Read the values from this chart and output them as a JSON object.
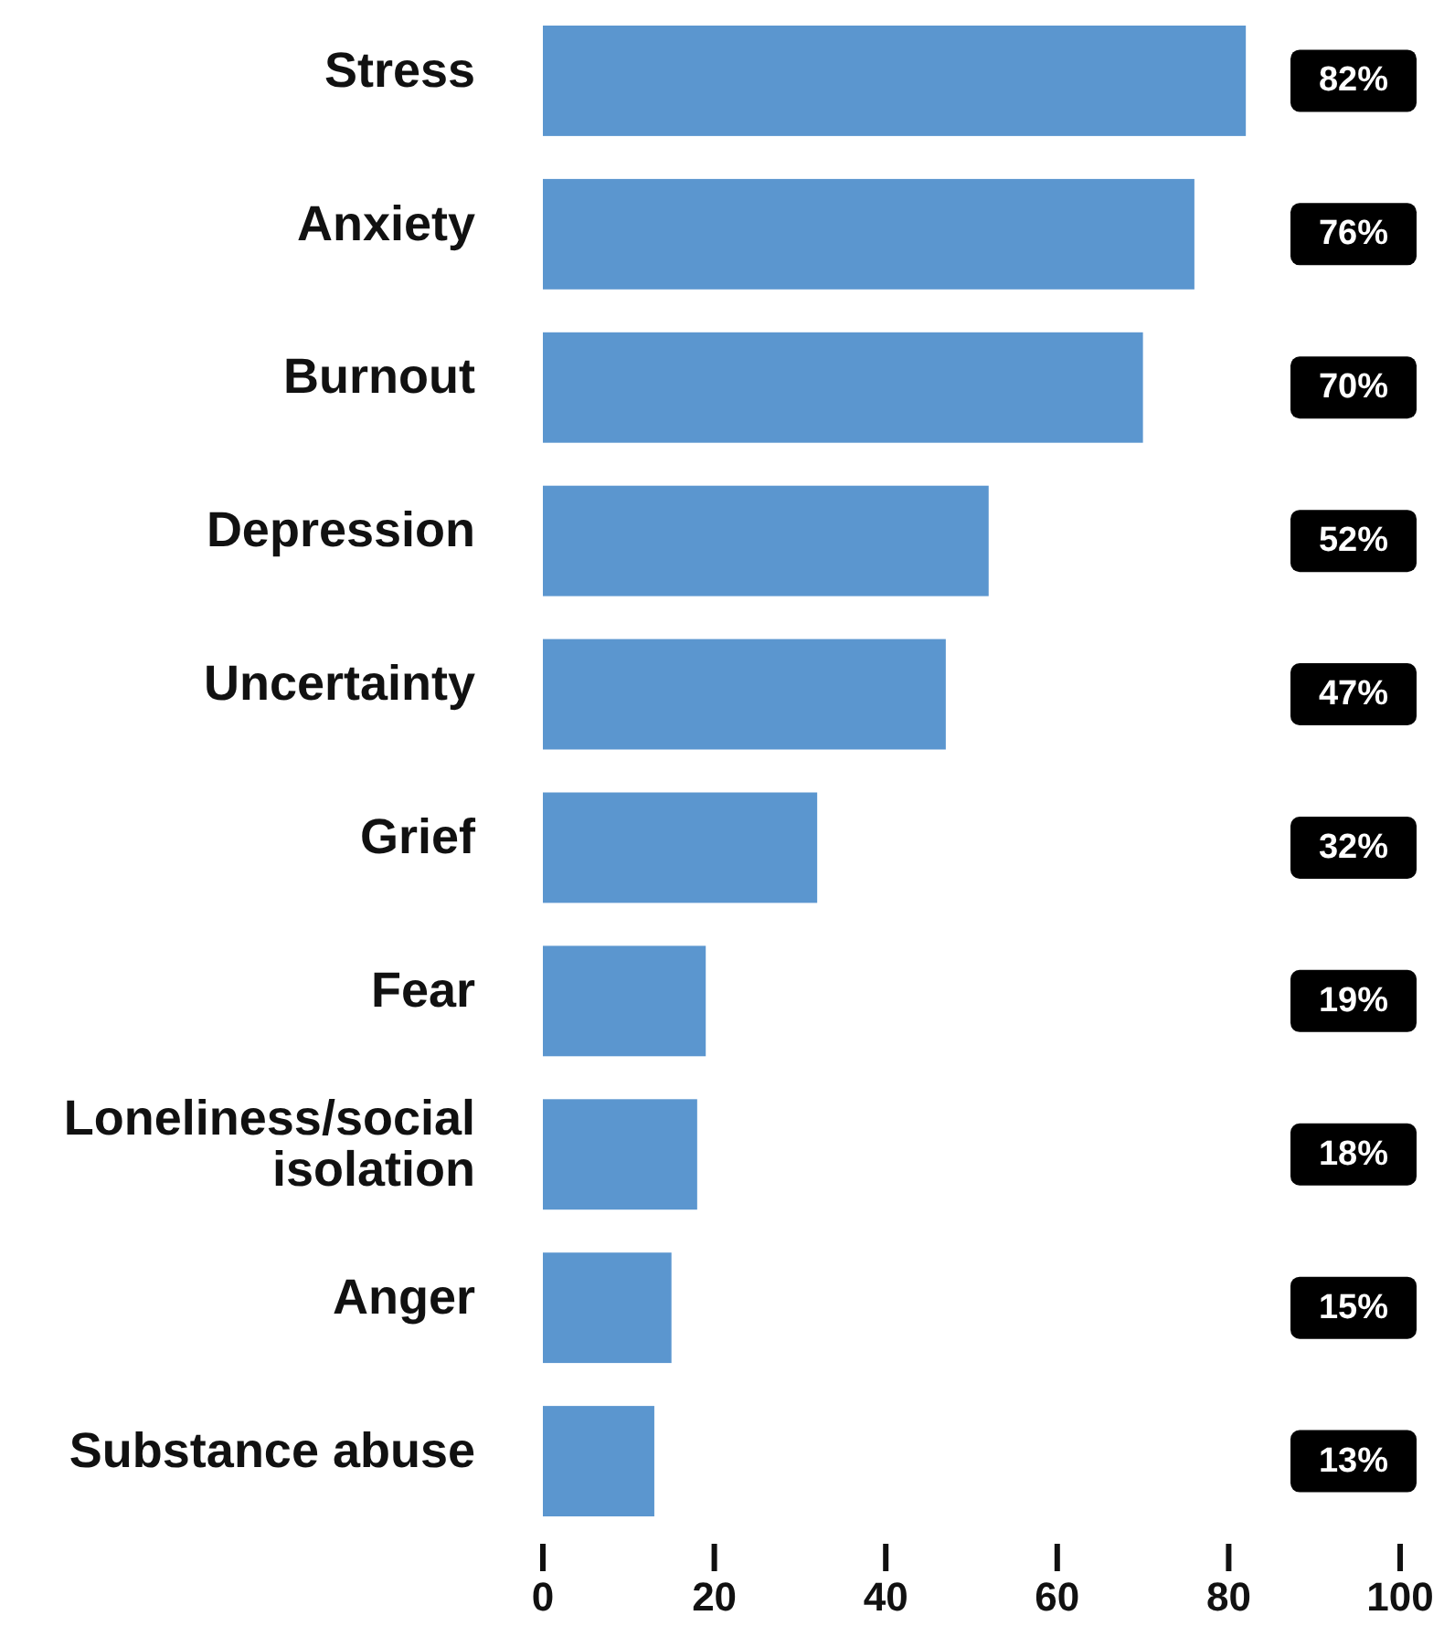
{
  "chart_data": {
    "type": "bar",
    "orientation": "horizontal",
    "categories": [
      "Stress",
      "Anxiety",
      "Burnout",
      "Depression",
      "Uncertainty",
      "Grief",
      "Fear",
      "Loneliness/social isolation",
      "Anger",
      "Substance abuse"
    ],
    "values": [
      82,
      76,
      70,
      52,
      47,
      32,
      19,
      18,
      15,
      13
    ],
    "value_labels": [
      "82%",
      "76%",
      "70%",
      "52%",
      "47%",
      "32%",
      "19%",
      "18%",
      "15%",
      "13%"
    ],
    "color": "#5b96cf",
    "xlim": [
      0,
      100
    ],
    "xticks": [
      0,
      20,
      40,
      60,
      80,
      100
    ],
    "grid": false
  }
}
